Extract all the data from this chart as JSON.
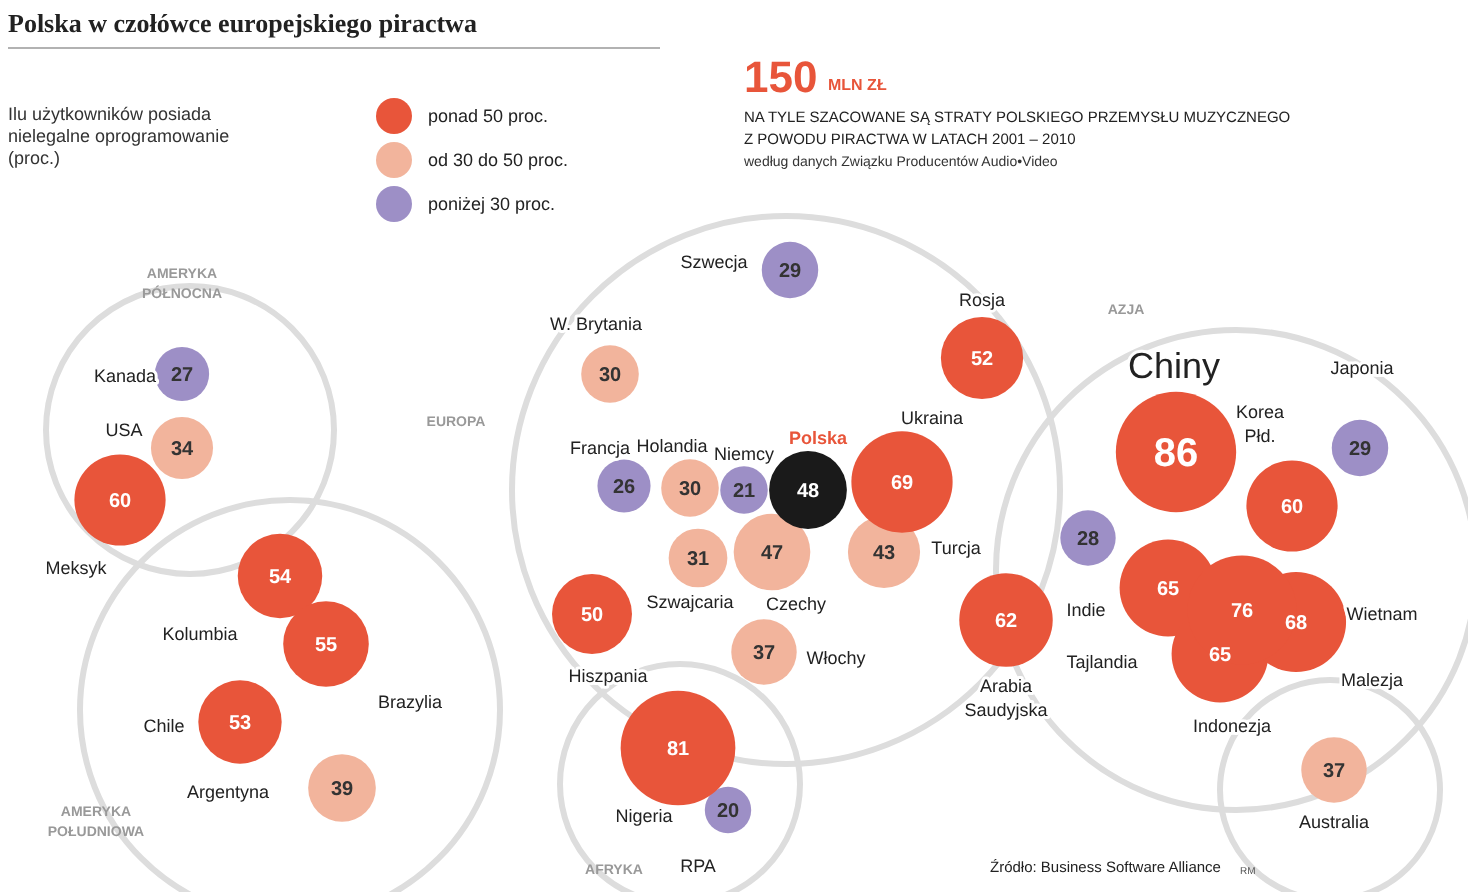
{
  "chart_data": {
    "type": "other",
    "title": "Polska w czołówce europejskiego piractwa",
    "subtitle": "Ilu użytkowników posiada\nnielegalne oprogramowanie\n(proc.)",
    "legend": "top",
    "data_labels": true,
    "categories": [
      "Kanada",
      "USA",
      "Meksyk",
      "Kolumbia",
      "Brazylia",
      "Chile",
      "Argentyna",
      "Szwecja",
      "W. Brytania",
      "Holandia",
      "Niemcy",
      "Polska",
      "Francja",
      "Hiszpania",
      "Szwajcaria",
      "Czechy",
      "Włochy",
      "Rosja",
      "Ukraina",
      "Turcja",
      "Arabia\nSaudyjska",
      "Nigeria",
      "RPA",
      "Chiny",
      "Japonia",
      "Korea\nPłd.",
      "Indie",
      "Wietnam",
      "Tajlandia",
      "Malezja",
      "Indonezja",
      "Australia"
    ],
    "series": [
      {
        "name": "ponad 50 proc.",
        "color": "#e8553a",
        "values": [
          null,
          null,
          60,
          54,
          55,
          53,
          null,
          null,
          null,
          null,
          null,
          null,
          null,
          50,
          null,
          null,
          null,
          52,
          69,
          null,
          62,
          81,
          null,
          86,
          null,
          60,
          null,
          76,
          65,
          68,
          65,
          null
        ]
      },
      {
        "name": "od 30 do 50 proc.",
        "color": "#f2b49c",
        "values": [
          null,
          34,
          null,
          null,
          null,
          null,
          39,
          null,
          30,
          30,
          null,
          null,
          null,
          null,
          31,
          47,
          37,
          null,
          null,
          43,
          null,
          null,
          null,
          null,
          null,
          null,
          null,
          null,
          null,
          null,
          null,
          37
        ]
      },
      {
        "name": "poniżej 30 proc.",
        "color": "#9d8fc6",
        "values": [
          27,
          null,
          null,
          null,
          null,
          null,
          null,
          29,
          null,
          null,
          21,
          null,
          26,
          null,
          null,
          null,
          null,
          null,
          null,
          null,
          null,
          null,
          20,
          null,
          29,
          null,
          28,
          null,
          null,
          null,
          null,
          null
        ]
      },
      {
        "color": "#1a1a1a",
        "values": [
          null,
          null,
          null,
          null,
          null,
          null,
          null,
          null,
          null,
          null,
          null,
          48,
          null,
          null,
          null,
          null,
          null,
          null,
          null,
          null,
          null,
          null,
          null,
          null,
          null,
          null,
          null,
          null,
          null,
          null,
          null,
          null
        ]
      }
    ],
    "annotations": [
      "150",
      "MLN ZŁ",
      "NA TYLE SZACOWANE SĄ STRATY POLSKIEGO PRZEMYSŁU MUZYCZNEGO",
      "Z POWODU PIRACTWA W LATACH 2001 – 2010",
      "według danych Związku Producentów Audio•Video",
      "AMERYKA\nPÓŁNOCNA",
      "EUROPA",
      "AZJA",
      "AMERYKA\nPOŁUDNIOWA",
      "AFRYKA",
      "Źródło: Business Software Alliance",
      "RM"
    ]
  }
}
